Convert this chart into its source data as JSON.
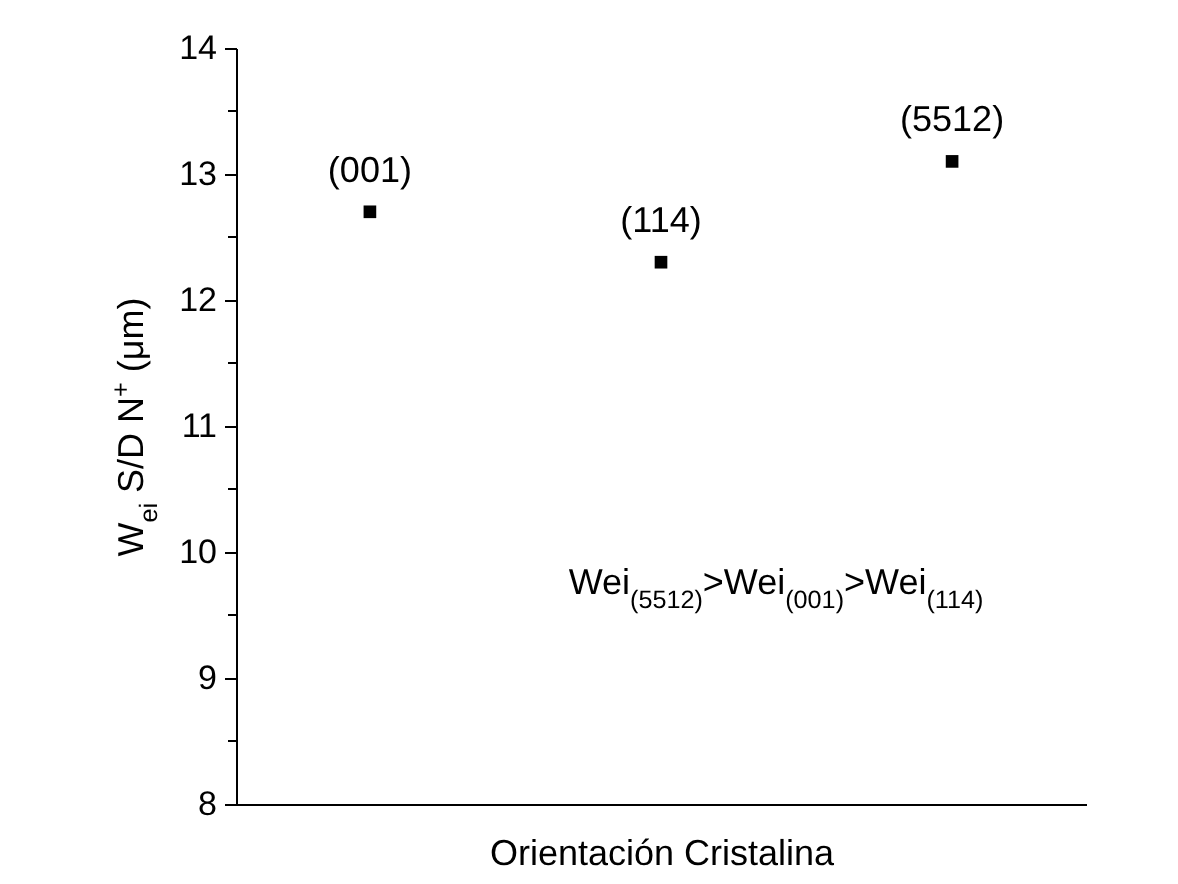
{
  "chart_data": {
    "type": "scatter",
    "categories": [
      "(001)",
      "(114)",
      "(5512)"
    ],
    "values": [
      12.7,
      12.3,
      13.1
    ],
    "color": "#000000",
    "marker": "square",
    "xlabel": "Orientación Cristalina",
    "ylabel": "W$_{ei}$ S/D N$^{+}$ (μm)",
    "ylim": [
      8,
      14
    ],
    "yticks": [
      8,
      {
        "value": 8.5,
        "label": null
      },
      9,
      {
        "value": 9.5,
        "label": null
      },
      10,
      {
        "value": 10.5,
        "label": null
      },
      11,
      {
        "value": 11.5,
        "label": null
      },
      12,
      {
        "value": 12.5,
        "label": null
      },
      13,
      {
        "value": 13.5,
        "label": null
      },
      14
    ],
    "tick_labels": "y",
    "grid": false,
    "annotations": [
      "Wei$_{(5512)}$>Wei$_{(001)}$>Wei$_{(114)}$"
    ]
  }
}
